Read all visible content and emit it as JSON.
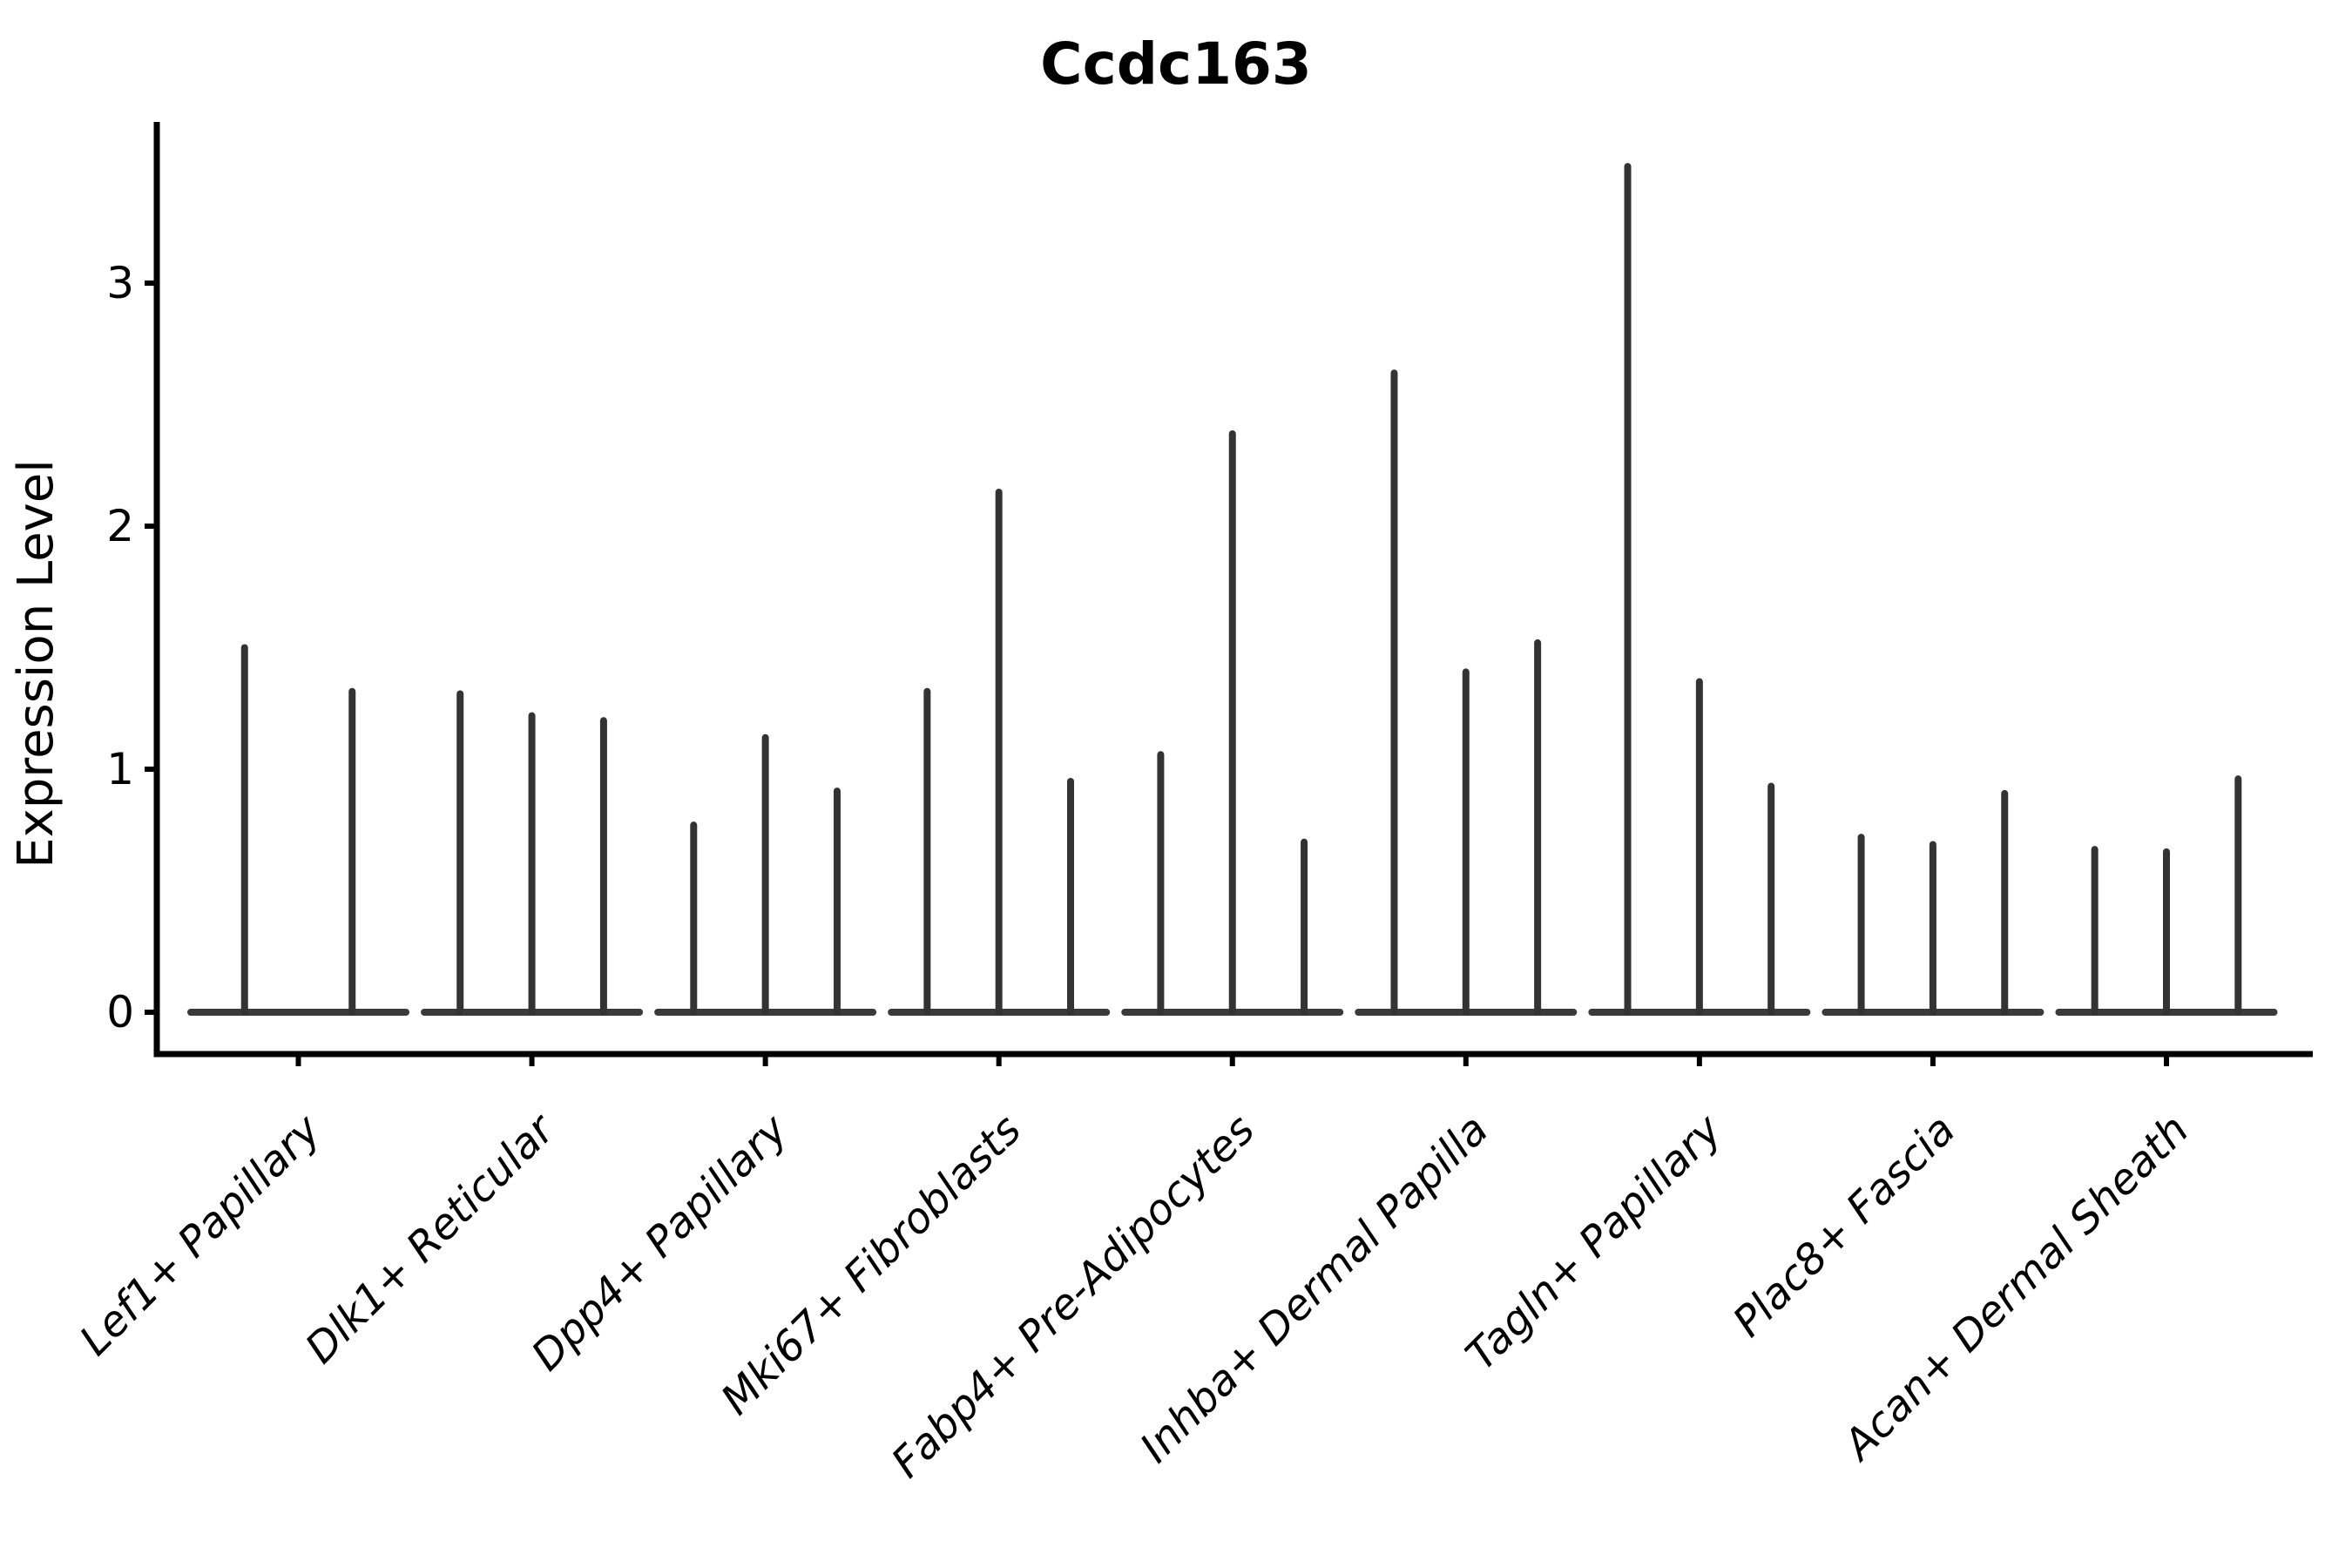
{
  "figure": {
    "title": "Ccdc163",
    "background": "#ffffff"
  },
  "chart_data": {
    "type": "violin",
    "title": "Ccdc163",
    "xlabel": "",
    "ylabel": "Expression Level",
    "ylim": [
      0,
      3.66
    ],
    "yticks": [
      0,
      1,
      2,
      3
    ],
    "grid": false,
    "legend": null,
    "categories": [
      "Lef1+ Papillary",
      "Dlk1+ Reticular",
      "Dpp4+ Papillary",
      "Mki67+ Fibroblasts",
      "Fabp4+ Pre-Adipocytes",
      "Inhba+ Dermal Papilla",
      "Tagln+ Papillary",
      "Plac8+ Fascia",
      "Acan+ Dermal Sheath"
    ],
    "groups": [
      {
        "category": "Lef1+ Papillary",
        "violin_maxima": [
          1.5,
          1.32
        ]
      },
      {
        "category": "Dlk1+ Reticular",
        "violin_maxima": [
          1.31,
          1.22,
          1.2
        ]
      },
      {
        "category": "Dpp4+ Papillary",
        "violin_maxima": [
          0.77,
          1.13,
          0.91
        ]
      },
      {
        "category": "Mki67+ Fibroblasts",
        "violin_maxima": [
          1.32,
          2.14,
          0.95
        ]
      },
      {
        "category": "Fabp4+ Pre-Adipocytes",
        "violin_maxima": [
          1.06,
          2.38,
          0.7
        ]
      },
      {
        "category": "Inhba+ Dermal Papilla",
        "violin_maxima": [
          2.63,
          1.4,
          1.52
        ]
      },
      {
        "category": "Tagln+ Papillary",
        "violin_maxima": [
          3.48,
          1.36,
          0.93
        ]
      },
      {
        "category": "Plac8+ Fascia",
        "violin_maxima": [
          0.72,
          0.69,
          0.9
        ]
      },
      {
        "category": "Acan+ Dermal Sheath",
        "violin_maxima": [
          0.67,
          0.66,
          0.96
        ]
      }
    ],
    "style": {
      "violin_color": "#333333",
      "baseline_color": "#3a3a3a",
      "axis_color": "#000000",
      "text_color": "#000000",
      "note": "violins collapsed to near-zero width; each renders as a vertical spike from 0 up to its maximum with a flat baseline at 0"
    }
  }
}
